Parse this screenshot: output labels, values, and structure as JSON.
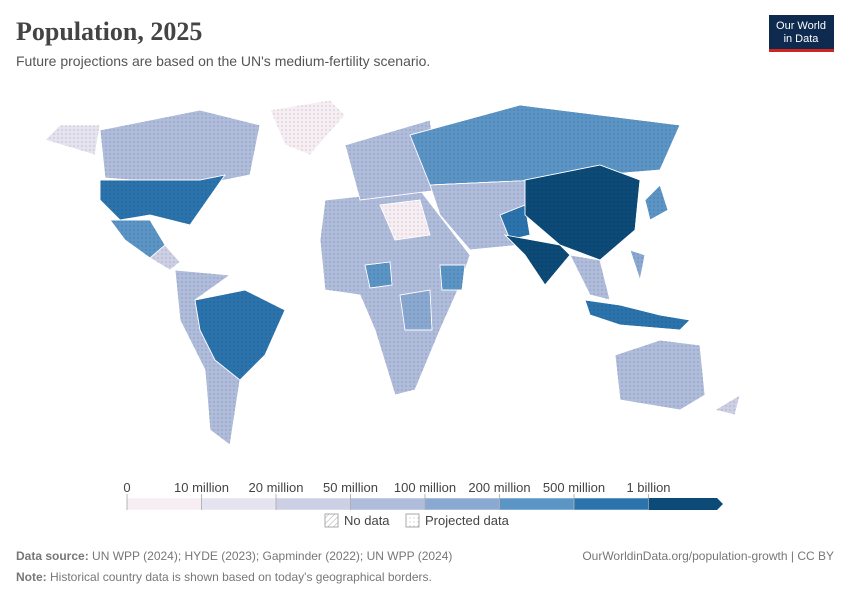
{
  "header": {
    "title": "Population, 2025",
    "subtitle": "Future projections are based on the UN's medium-fertility scenario.",
    "logo": [
      "Our World",
      "in Data"
    ]
  },
  "legend": {
    "ticks": [
      "0",
      "10 million",
      "20 million",
      "50 million",
      "100 million",
      "200 million",
      "500 million",
      "1 billion"
    ],
    "colors": [
      "#f6eef3",
      "#e4e3ef",
      "#cdcfe4",
      "#b0bcdb",
      "#8aa9d1",
      "#5b95c6",
      "#2b73ad",
      "#0c4a78"
    ],
    "no_data": "No data",
    "projected": "Projected data"
  },
  "footer": {
    "source_label": "Data source:",
    "source": "UN WPP (2024); HYDE (2023); Gapminder (2022); UN WPP (2024)",
    "credit": "OurWorldinData.org/population-growth | CC BY",
    "note_label": "Note:",
    "note": "Historical country data is shown based on today's geographical borders."
  }
}
